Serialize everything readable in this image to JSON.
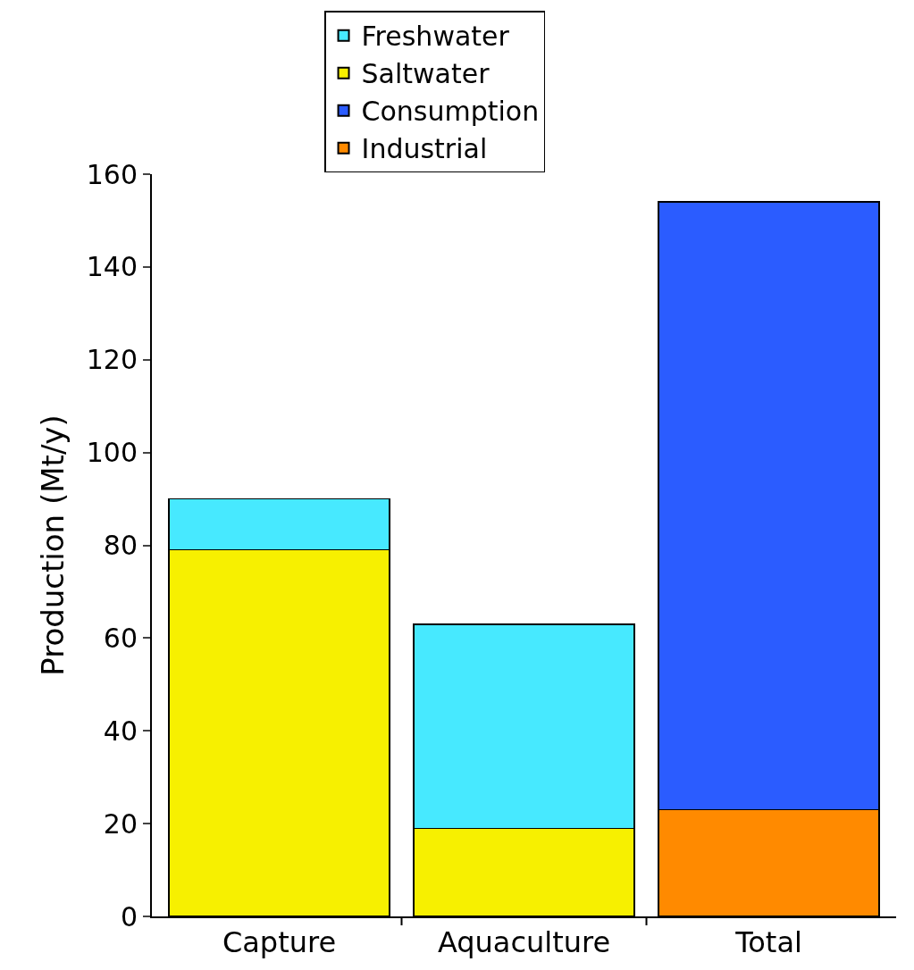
{
  "chart_data": {
    "type": "bar",
    "ylabel": "Production (Mt/y)",
    "categories": [
      "Capture",
      "Aquaculture",
      "Total"
    ],
    "stacked": true,
    "ylim": [
      0,
      160
    ],
    "yticks": [
      0,
      20,
      40,
      60,
      80,
      100,
      120,
      140,
      160
    ],
    "legend": "top",
    "series": [
      {
        "name": "Industrial",
        "color": "#ff8a00",
        "values": [
          null,
          null,
          23
        ]
      },
      {
        "name": "Consumption",
        "color": "#2b5cff",
        "values": [
          null,
          null,
          131
        ]
      },
      {
        "name": "Saltwater",
        "color": "#f7f000",
        "values": [
          79,
          19,
          null
        ]
      },
      {
        "name": "Freshwater",
        "color": "#47e9ff",
        "values": [
          11,
          44,
          null
        ]
      }
    ]
  }
}
